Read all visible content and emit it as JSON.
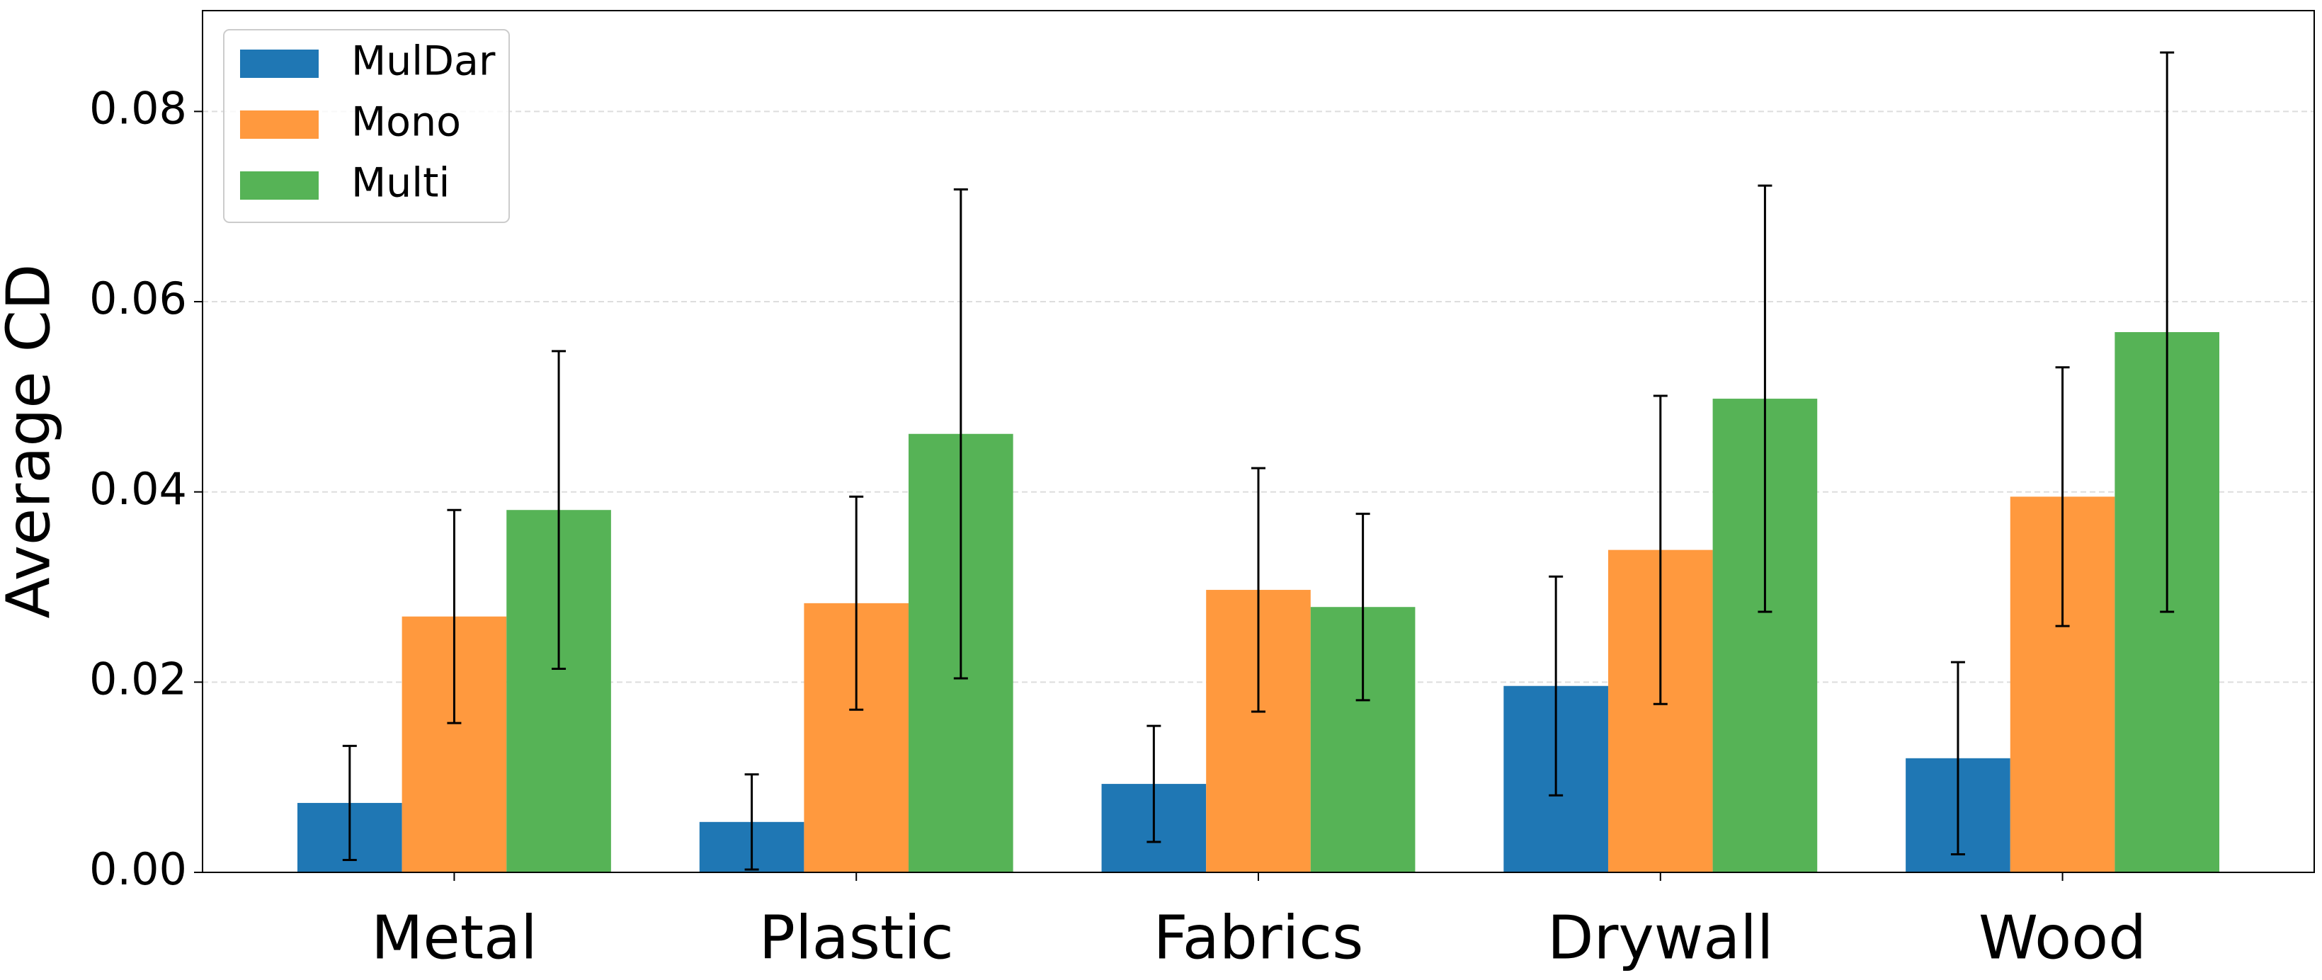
{
  "chart_data": {
    "type": "bar",
    "ylabel": "Average CD",
    "categories": [
      "Metal",
      "Plastic",
      "Fabrics",
      "Drywall",
      "Wood"
    ],
    "series": [
      {
        "name": "MulDar",
        "color": "#1f77b4",
        "values": [
          0.0073,
          0.0053,
          0.0093,
          0.0196,
          0.012
        ],
        "errors": [
          0.006,
          0.005,
          0.0061,
          0.0115,
          0.0101
        ]
      },
      {
        "name": "Mono",
        "color": "#ff993e",
        "values": [
          0.0269,
          0.0283,
          0.0297,
          0.0339,
          0.0395
        ],
        "errors": [
          0.0112,
          0.0112,
          0.0128,
          0.0162,
          0.0136
        ]
      },
      {
        "name": "Multi",
        "color": "#56b356",
        "values": [
          0.0381,
          0.0461,
          0.0279,
          0.0498,
          0.0568
        ],
        "errors": [
          0.0167,
          0.0257,
          0.0098,
          0.0224,
          0.0294
        ]
      }
    ],
    "ylim": [
      0,
      0.0906
    ],
    "yticks": [
      {
        "value": 0,
        "label": "0.00"
      },
      {
        "value": 0.02,
        "label": "0.02"
      },
      {
        "value": 0.04,
        "label": "0.04"
      },
      {
        "value": 0.06,
        "label": "0.06"
      },
      {
        "value": 0.08,
        "label": "0.08"
      }
    ],
    "grid": true,
    "legend": "upper left"
  }
}
